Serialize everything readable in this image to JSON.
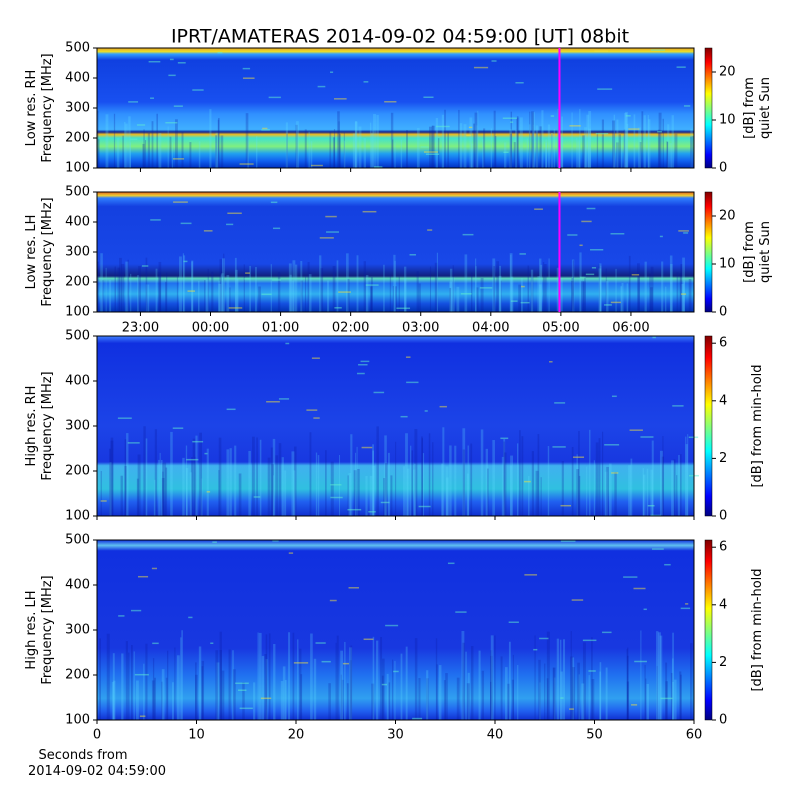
{
  "chart_data": [
    {
      "type": "heatmap",
      "title": "IPRT/AMATERAS 2014-09-02 04:59:00 [UT]   08bit",
      "ylabel": [
        "Low res. RH",
        "Frequency [MHz]"
      ],
      "ylim": [
        100,
        500
      ],
      "yticks": [
        100,
        200,
        300,
        400,
        500
      ],
      "colormap": "jet",
      "colorbar": {
        "label": [
          "[dB] from",
          "quiet Sun"
        ],
        "lim": [
          0,
          25
        ],
        "ticks": [
          0,
          10,
          20
        ]
      },
      "marker_color": "#ff00ff"
    },
    {
      "type": "heatmap",
      "ylabel": [
        "Low res. LH",
        "Frequency [MHz]"
      ],
      "ylim": [
        100,
        500
      ],
      "yticks": [
        100,
        200,
        300,
        400,
        500
      ],
      "xlim": [
        22.38,
        30.9
      ],
      "xticks": [
        {
          "value": 23,
          "label": "23:00"
        },
        {
          "value": 24,
          "label": "00:00"
        },
        {
          "value": 25,
          "label": "01:00"
        },
        {
          "value": 26,
          "label": "02:00"
        },
        {
          "value": 27,
          "label": "03:00"
        },
        {
          "value": 28,
          "label": "04:00"
        },
        {
          "value": 29,
          "label": "05:00"
        },
        {
          "value": 30,
          "label": "06:00"
        }
      ],
      "marker_x": 28.98,
      "marker_color": "#ff00ff",
      "colormap": "jet",
      "colorbar": {
        "label": [
          "[dB] from",
          "quiet Sun"
        ],
        "lim": [
          0,
          25
        ],
        "ticks": [
          0,
          10,
          20
        ]
      }
    },
    {
      "type": "heatmap",
      "ylabel": [
        "High res. RH",
        "Frequency [MHz]"
      ],
      "ylim": [
        100,
        500
      ],
      "yticks": [
        100,
        200,
        300,
        400,
        500
      ],
      "colormap": "jet",
      "colorbar": {
        "label": [
          "[dB] from min-hold"
        ],
        "lim": [
          0,
          6.25
        ],
        "ticks": [
          0,
          2,
          4,
          6
        ]
      }
    },
    {
      "type": "heatmap",
      "ylabel": [
        "High res. LH",
        "Frequency [MHz]"
      ],
      "ylim": [
        100,
        500
      ],
      "yticks": [
        100,
        200,
        300,
        400,
        500
      ],
      "xlim": [
        0,
        60
      ],
      "xticks": [
        0,
        10,
        20,
        30,
        40,
        50,
        60
      ],
      "xlabel": [
        "Seconds from",
        "2014-09-02 04:59:00"
      ],
      "colormap": "jet",
      "colorbar": {
        "label": [
          "[dB] from min-hold"
        ],
        "lim": [
          0,
          6.25
        ],
        "ticks": [
          0,
          2,
          4,
          6
        ]
      }
    }
  ]
}
